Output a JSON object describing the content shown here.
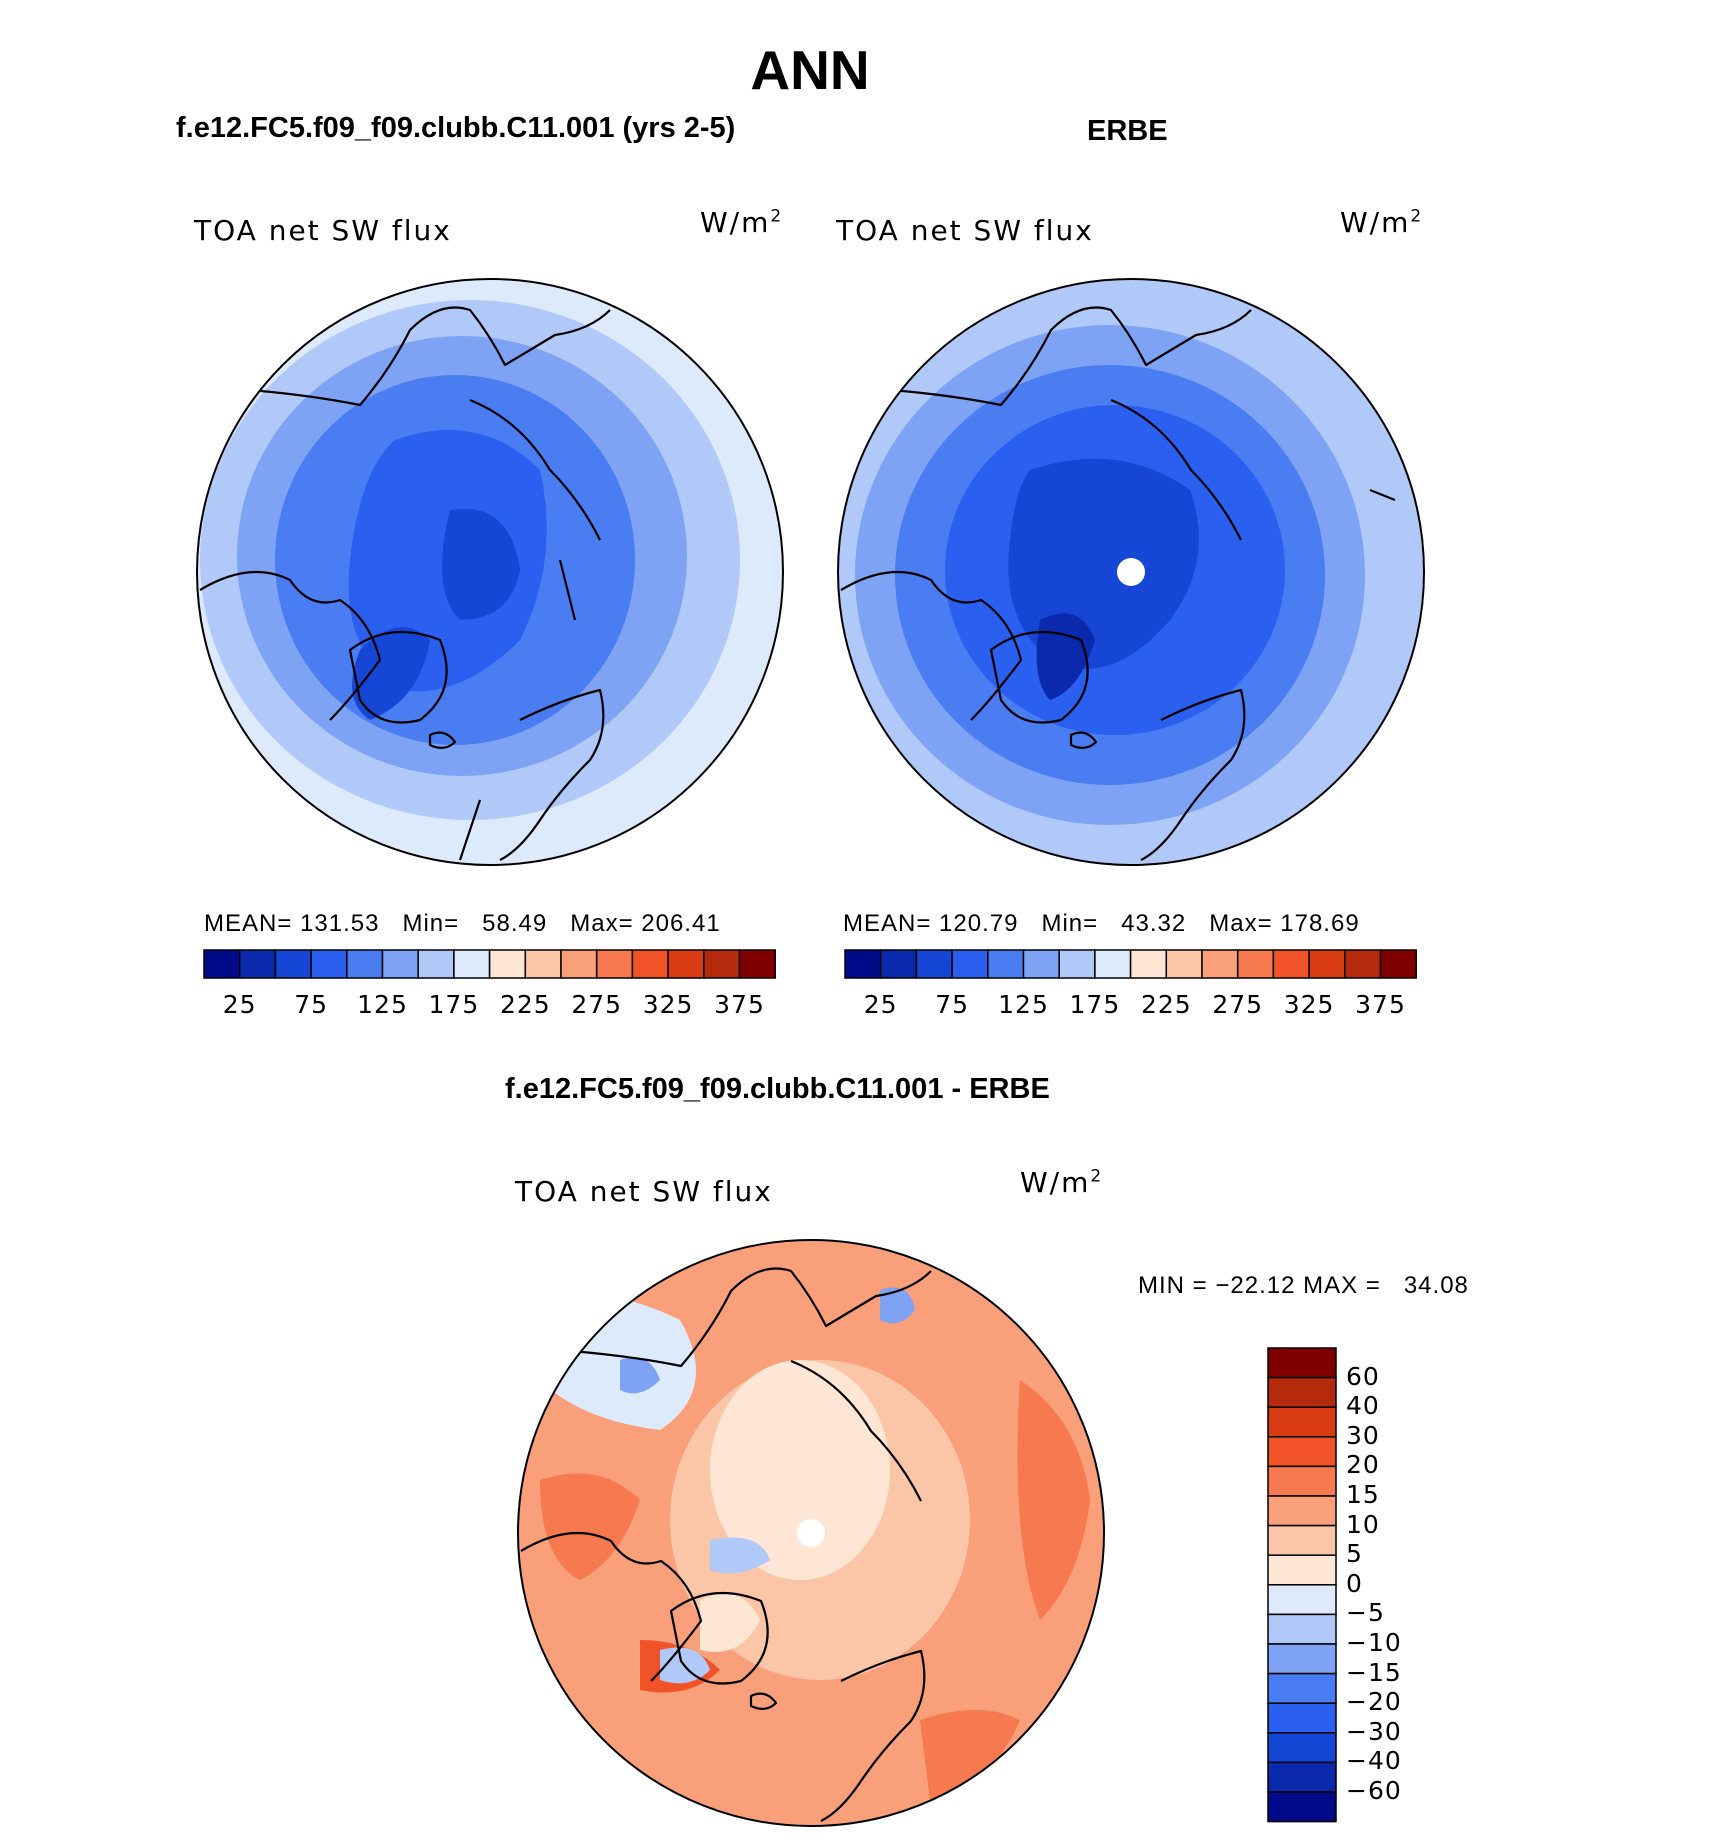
{
  "title": "ANN",
  "panels": [
    {
      "case_label": "f.e12.FC5.f09_f09.clubb.C11.001 (yrs 2-5)",
      "field": "TOA net SW flux",
      "units": "W/m",
      "units_exp": "2",
      "mean_label": "MEAN=",
      "mean": "131.53",
      "min_label": "Min=",
      "min": "58.49",
      "max_label": "Max=",
      "max": "206.41",
      "has_polar_hole": false
    },
    {
      "case_label": "ERBE",
      "field": "TOA net SW flux",
      "units": "W/m",
      "units_exp": "2",
      "mean_label": "MEAN=",
      "mean": "120.79",
      "min_label": "Min=",
      "min": "43.32",
      "max_label": "Max=",
      "max": "178.69",
      "has_polar_hole": true
    }
  ],
  "colorbar_top": {
    "colors": [
      "#000b8a",
      "#0a29ad",
      "#1546d6",
      "#2b5ff0",
      "#4a7cf2",
      "#7ea3f5",
      "#b0c9f9",
      "#ddeafc",
      "#fde7d4",
      "#fbc6a8",
      "#f9a07a",
      "#f6794f",
      "#f25228",
      "#d93b12",
      "#b52a0c",
      "#800000"
    ],
    "labels": [
      "25",
      "75",
      "125",
      "175",
      "225",
      "275",
      "325",
      "375"
    ]
  },
  "diff": {
    "title": "f.e12.FC5.f09_f09.clubb.C11.001 - ERBE",
    "field": "TOA net SW flux",
    "units": "W/m",
    "units_exp": "2",
    "min_label": "MIN =",
    "min": "−22.12",
    "max_label": "MAX =",
    "max": "34.08",
    "colorbar": {
      "colors": [
        "#800000",
        "#b52a0c",
        "#d93b12",
        "#f25228",
        "#f6794f",
        "#f9a07a",
        "#fbc6a8",
        "#fde7d4",
        "#ddeafc",
        "#b0c9f9",
        "#7ea3f5",
        "#4a7cf2",
        "#2b5ff0",
        "#1546d6",
        "#0a29ad",
        "#000b8a"
      ],
      "labels": [
        "60",
        "40",
        "30",
        "20",
        "15",
        "10",
        "5",
        "0",
        "−5",
        "−10",
        "−15",
        "−20",
        "−30",
        "−40",
        "−60"
      ]
    }
  },
  "colors": {
    "ocean_far": "#ddeafc",
    "mid": "#7ea3f5",
    "deep": "#1546d6",
    "diff_warm": "#f9a07a",
    "diff_strong": "#f6794f",
    "coast": "#000000"
  }
}
